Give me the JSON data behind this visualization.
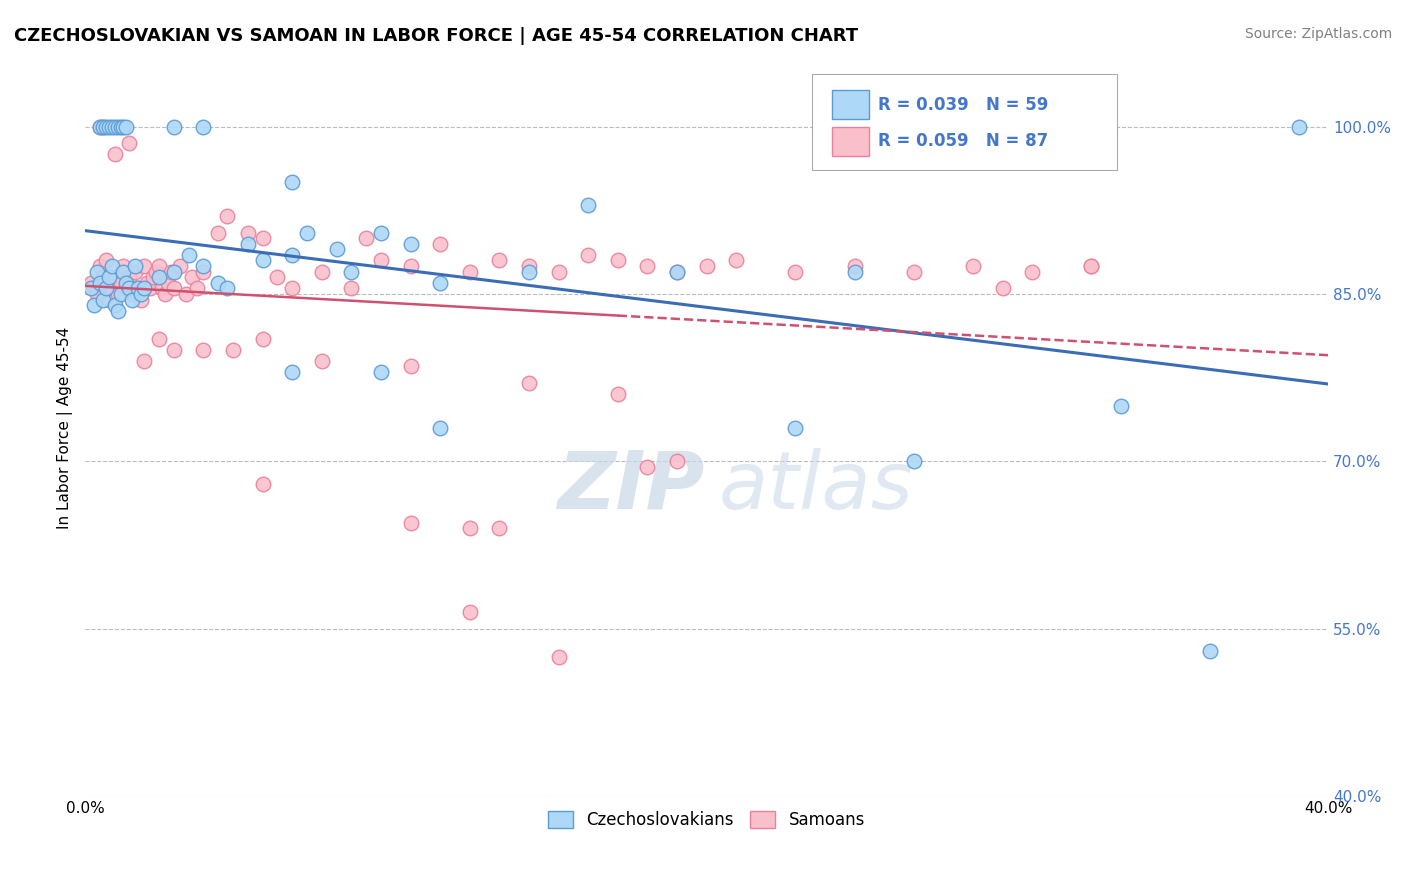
{
  "title": "CZECHOSLOVAKIAN VS SAMOAN IN LABOR FORCE | AGE 45-54 CORRELATION CHART",
  "source": "Source: ZipAtlas.com",
  "xlabel": "",
  "ylabel": "In Labor Force | Age 45-54",
  "xmin": 0.0,
  "xmax": 0.42,
  "ymin": 0.4,
  "ymax": 1.06,
  "yticks": [
    0.4,
    0.55,
    0.7,
    0.85,
    1.0
  ],
  "ytick_labels": [
    "40.0%",
    "55.0%",
    "70.0%",
    "85.0%",
    "100.0%"
  ],
  "xticks": [
    0.0,
    0.42
  ],
  "xtick_labels": [
    "0.0%",
    "40.0%"
  ],
  "blue_color": "#ADD8F7",
  "pink_color": "#F9C0CC",
  "blue_edge_color": "#5B9BD5",
  "pink_edge_color": "#E8829A",
  "blue_line_color": "#3A6DB5",
  "pink_line_color": "#D05070",
  "r_blue": 0.039,
  "n_blue": 59,
  "r_pink": 0.059,
  "n_pink": 87,
  "legend_labels": [
    "Czechoslovakians",
    "Samoans"
  ],
  "watermark_zip": "ZIP",
  "watermark_atlas": "atlas",
  "blue_points": [
    [
      0.002,
      0.855
    ],
    [
      0.003,
      0.84
    ],
    [
      0.004,
      0.87
    ],
    [
      0.005,
      0.86
    ],
    [
      0.006,
      0.845
    ],
    [
      0.007,
      0.855
    ],
    [
      0.008,
      0.865
    ],
    [
      0.009,
      0.875
    ],
    [
      0.01,
      0.84
    ],
    [
      0.011,
      0.835
    ],
    [
      0.012,
      0.85
    ],
    [
      0.013,
      0.87
    ],
    [
      0.014,
      0.86
    ],
    [
      0.015,
      0.855
    ],
    [
      0.016,
      0.845
    ],
    [
      0.017,
      0.875
    ],
    [
      0.018,
      0.855
    ],
    [
      0.019,
      0.85
    ],
    [
      0.02,
      0.855
    ],
    [
      0.025,
      0.865
    ],
    [
      0.03,
      0.87
    ],
    [
      0.035,
      0.885
    ],
    [
      0.04,
      0.875
    ],
    [
      0.045,
      0.86
    ],
    [
      0.048,
      0.855
    ],
    [
      0.055,
      0.895
    ],
    [
      0.06,
      0.88
    ],
    [
      0.07,
      0.885
    ],
    [
      0.075,
      0.905
    ],
    [
      0.085,
      0.89
    ],
    [
      0.09,
      0.87
    ],
    [
      0.1,
      0.905
    ],
    [
      0.11,
      0.895
    ],
    [
      0.12,
      0.86
    ],
    [
      0.15,
      0.87
    ],
    [
      0.2,
      0.87
    ],
    [
      0.24,
      0.73
    ],
    [
      0.26,
      0.87
    ],
    [
      0.28,
      0.7
    ],
    [
      0.35,
      0.75
    ],
    [
      0.38,
      0.53
    ],
    [
      0.005,
      1.0
    ],
    [
      0.006,
      1.0
    ],
    [
      0.007,
      1.0
    ],
    [
      0.008,
      1.0
    ],
    [
      0.009,
      1.0
    ],
    [
      0.01,
      1.0
    ],
    [
      0.011,
      1.0
    ],
    [
      0.012,
      1.0
    ],
    [
      0.013,
      1.0
    ],
    [
      0.014,
      1.0
    ],
    [
      0.03,
      1.0
    ],
    [
      0.04,
      1.0
    ],
    [
      0.07,
      0.95
    ],
    [
      0.17,
      0.93
    ],
    [
      0.31,
      1.0
    ],
    [
      0.41,
      1.0
    ],
    [
      0.07,
      0.78
    ],
    [
      0.1,
      0.78
    ],
    [
      0.12,
      0.73
    ]
  ],
  "pink_points": [
    [
      0.002,
      0.86
    ],
    [
      0.003,
      0.855
    ],
    [
      0.004,
      0.85
    ],
    [
      0.005,
      0.875
    ],
    [
      0.006,
      0.865
    ],
    [
      0.007,
      0.88
    ],
    [
      0.008,
      0.845
    ],
    [
      0.009,
      0.855
    ],
    [
      0.01,
      0.865
    ],
    [
      0.011,
      0.85
    ],
    [
      0.012,
      0.86
    ],
    [
      0.013,
      0.875
    ],
    [
      0.014,
      0.855
    ],
    [
      0.015,
      0.865
    ],
    [
      0.016,
      0.85
    ],
    [
      0.017,
      0.87
    ],
    [
      0.018,
      0.855
    ],
    [
      0.019,
      0.845
    ],
    [
      0.02,
      0.875
    ],
    [
      0.021,
      0.86
    ],
    [
      0.022,
      0.855
    ],
    [
      0.023,
      0.865
    ],
    [
      0.024,
      0.87
    ],
    [
      0.025,
      0.875
    ],
    [
      0.026,
      0.855
    ],
    [
      0.027,
      0.85
    ],
    [
      0.028,
      0.86
    ],
    [
      0.029,
      0.87
    ],
    [
      0.03,
      0.855
    ],
    [
      0.032,
      0.875
    ],
    [
      0.034,
      0.85
    ],
    [
      0.036,
      0.865
    ],
    [
      0.038,
      0.855
    ],
    [
      0.04,
      0.87
    ],
    [
      0.045,
      0.905
    ],
    [
      0.048,
      0.92
    ],
    [
      0.055,
      0.905
    ],
    [
      0.06,
      0.9
    ],
    [
      0.065,
      0.865
    ],
    [
      0.07,
      0.855
    ],
    [
      0.08,
      0.87
    ],
    [
      0.09,
      0.855
    ],
    [
      0.095,
      0.9
    ],
    [
      0.1,
      0.88
    ],
    [
      0.11,
      0.875
    ],
    [
      0.12,
      0.895
    ],
    [
      0.13,
      0.87
    ],
    [
      0.14,
      0.88
    ],
    [
      0.15,
      0.875
    ],
    [
      0.16,
      0.87
    ],
    [
      0.17,
      0.885
    ],
    [
      0.18,
      0.88
    ],
    [
      0.19,
      0.875
    ],
    [
      0.2,
      0.87
    ],
    [
      0.21,
      0.875
    ],
    [
      0.22,
      0.88
    ],
    [
      0.24,
      0.87
    ],
    [
      0.26,
      0.875
    ],
    [
      0.28,
      0.87
    ],
    [
      0.3,
      0.875
    ],
    [
      0.32,
      0.87
    ],
    [
      0.34,
      0.875
    ],
    [
      0.02,
      0.79
    ],
    [
      0.025,
      0.81
    ],
    [
      0.03,
      0.8
    ],
    [
      0.04,
      0.8
    ],
    [
      0.05,
      0.8
    ],
    [
      0.06,
      0.81
    ],
    [
      0.08,
      0.79
    ],
    [
      0.11,
      0.785
    ],
    [
      0.15,
      0.77
    ],
    [
      0.18,
      0.76
    ],
    [
      0.19,
      0.695
    ],
    [
      0.2,
      0.7
    ],
    [
      0.06,
      0.68
    ],
    [
      0.11,
      0.645
    ],
    [
      0.13,
      0.64
    ],
    [
      0.14,
      0.64
    ],
    [
      0.13,
      0.565
    ],
    [
      0.16,
      0.525
    ],
    [
      0.005,
      1.0
    ],
    [
      0.006,
      1.0
    ],
    [
      0.01,
      0.975
    ],
    [
      0.015,
      0.985
    ],
    [
      0.31,
      0.855
    ],
    [
      0.34,
      0.875
    ]
  ]
}
